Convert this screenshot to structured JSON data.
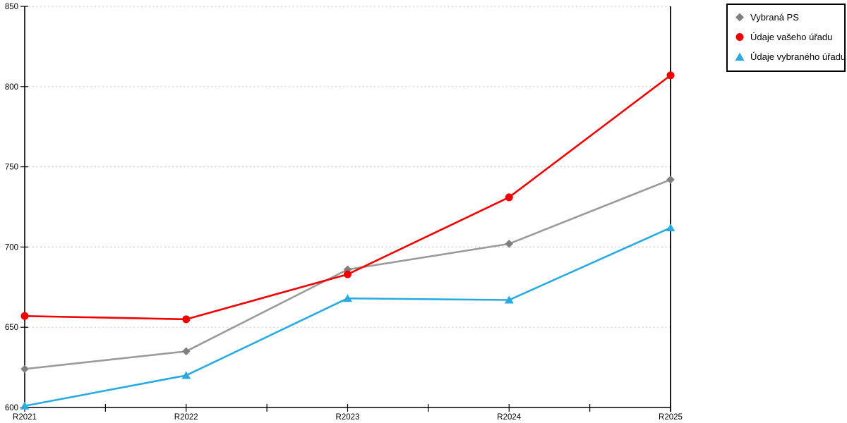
{
  "chart_data": {
    "type": "line",
    "title": "",
    "xlabel": "",
    "ylabel": "",
    "categories": [
      "R2021",
      "R2022",
      "R2023",
      "R2024",
      "R2025"
    ],
    "y_axis": {
      "min": 600,
      "max": 850,
      "tick_step": 50,
      "tick_labels": [
        "600",
        "650",
        "700",
        "750",
        "800",
        "850"
      ]
    },
    "grid": "horizontal-dotted",
    "legend_position": "outside-top-right",
    "series": [
      {
        "name": "Vybraná PS",
        "marker": "diamond",
        "color": "#808080",
        "line_color": "#9A9A9A",
        "values": [
          624,
          635,
          686,
          702,
          742
        ]
      },
      {
        "name": "Údaje vašeho úřadu",
        "marker": "circle",
        "color": "#F20000",
        "line_color": "#F20000",
        "values": [
          657,
          655,
          683,
          731,
          807
        ]
      },
      {
        "name": "Údaje vybraného úřadu",
        "marker": "triangle",
        "color": "#29ABE2",
        "line_color": "#29ABE2",
        "values": [
          601,
          620,
          668,
          667,
          712
        ]
      }
    ]
  },
  "colors": {
    "background": "#FFFFFF",
    "axis": "#000000",
    "gridline": "#C9C9C9",
    "legend_border": "#000000",
    "tick_label": "#000000"
  }
}
